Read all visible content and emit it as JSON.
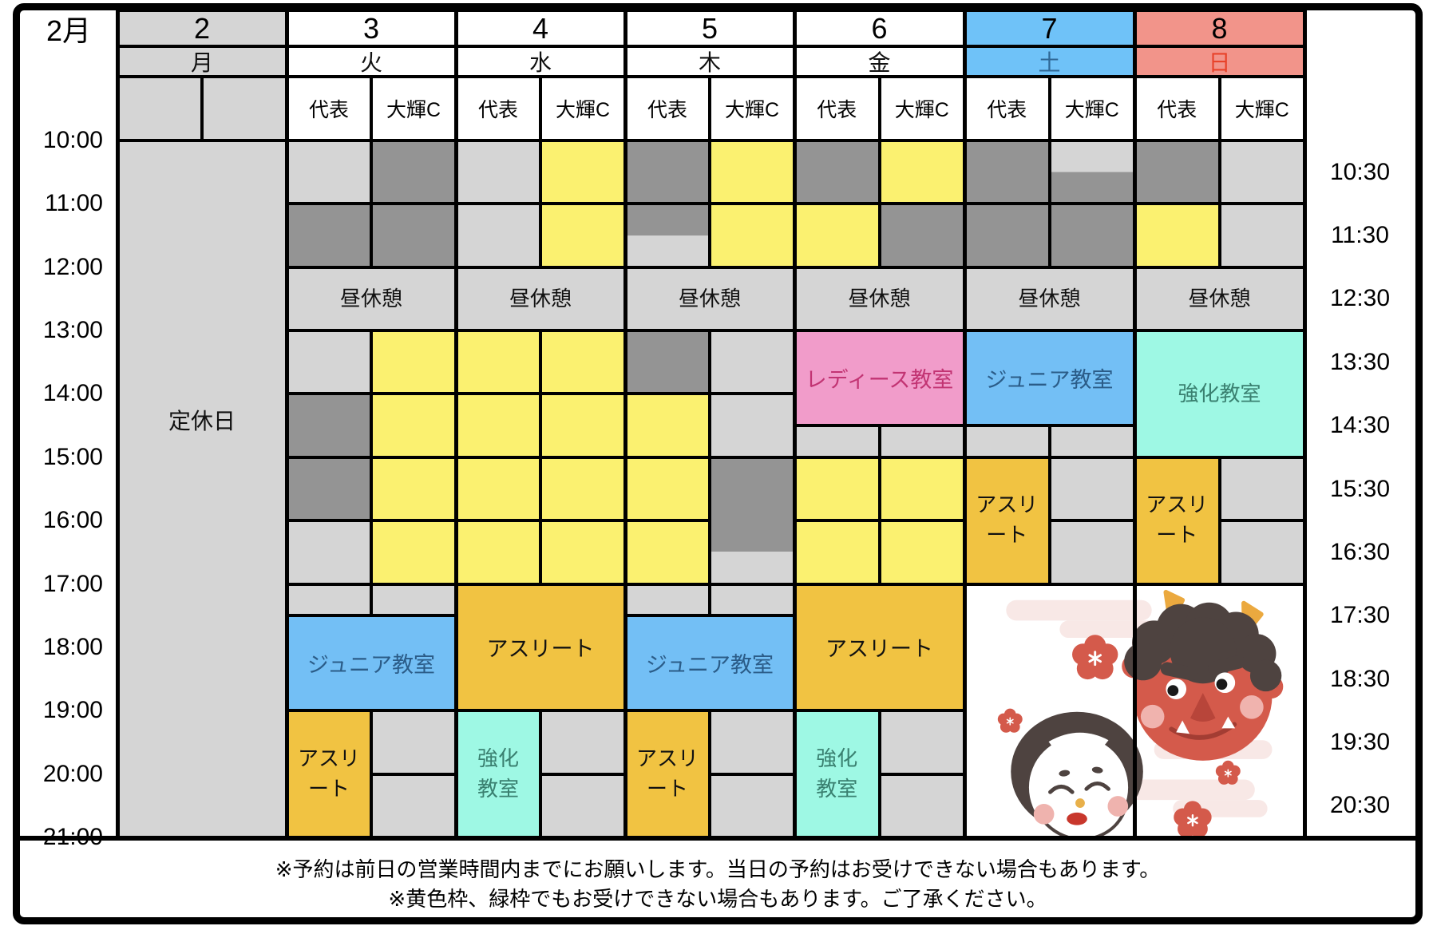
{
  "title": "2月",
  "colors": {
    "gray": "#d5d5d5",
    "dark": "#949494",
    "yellow": "#fbf170",
    "orange": "#f1c342",
    "blue": "#73bff5",
    "cyan": "#9ef8e4",
    "pink": "#f19cca",
    "white": "#ffffff",
    "blue_head": "#6fc2f8",
    "red_head": "#f2948a",
    "ink": "#111111",
    "satText": "#2f6795",
    "sunText": "#e8432a",
    "blueText": "#2b5c88",
    "cyanText": "#3a8070",
    "pinkText": "#c23473"
  },
  "staff_columns": [
    "代表",
    "大輝C"
  ],
  "days": [
    {
      "date": "2",
      "weekday": "月",
      "head_bg": "gray",
      "weekday_color": "ink",
      "staff": false
    },
    {
      "date": "3",
      "weekday": "火",
      "head_bg": "white",
      "weekday_color": "ink",
      "staff": true
    },
    {
      "date": "4",
      "weekday": "水",
      "head_bg": "white",
      "weekday_color": "ink",
      "staff": true
    },
    {
      "date": "5",
      "weekday": "木",
      "head_bg": "white",
      "weekday_color": "ink",
      "staff": true
    },
    {
      "date": "6",
      "weekday": "金",
      "head_bg": "white",
      "weekday_color": "ink",
      "staff": true
    },
    {
      "date": "7",
      "weekday": "土",
      "head_bg": "blue_head",
      "weekday_color": "satText",
      "staff": true
    },
    {
      "date": "8",
      "weekday": "日",
      "head_bg": "red_head",
      "weekday_color": "sunText",
      "staff": true
    }
  ],
  "left_times": [
    "10:00",
    "11:00",
    "12:00",
    "13:00",
    "14:00",
    "15:00",
    "16:00",
    "17:00",
    "18:00",
    "19:00",
    "20:00",
    "21:00"
  ],
  "right_times": [
    "10:30",
    "11:30",
    "12:30",
    "13:30",
    "14:30",
    "15:30",
    "16:30",
    "17:30",
    "18:30",
    "19:30",
    "20:30"
  ],
  "labels": {
    "closed": "定休日",
    "lunch": "昼休憩",
    "junior": "ジュニア教室",
    "athlete": "アスリート",
    "kyoka": "強化教室",
    "ladies": "レディース教室"
  },
  "illustration_alt": "節分の鬼とお多福のイラスト",
  "blocks": [
    {
      "date": 2,
      "col": "B",
      "from": "10:00",
      "to": "21:00",
      "color": "gray",
      "label": [
        "定休日"
      ],
      "vAlign": "upper",
      "name": "closed-day-cell"
    },
    {
      "date": 3,
      "col": "L",
      "from": "10:00",
      "to": "11:00",
      "color": "gray"
    },
    {
      "date": 3,
      "col": "L",
      "from": "11:00",
      "to": "12:00",
      "color": "dark"
    },
    {
      "date": 3,
      "col": "R",
      "from": "10:00",
      "to": "11:00",
      "color": "dark"
    },
    {
      "date": 3,
      "col": "R",
      "from": "11:00",
      "to": "12:00",
      "color": "dark"
    },
    {
      "date": 3,
      "col": "B",
      "from": "12:00",
      "to": "13:00",
      "color": "gray",
      "label": [
        "昼休憩"
      ],
      "name": "lunch-break-cell"
    },
    {
      "date": 3,
      "col": "L",
      "from": "13:00",
      "to": "14:00",
      "color": "gray"
    },
    {
      "date": 3,
      "col": "L",
      "from": "14:00",
      "to": "15:00",
      "color": "dark"
    },
    {
      "date": 3,
      "col": "L",
      "from": "15:00",
      "to": "16:00",
      "color": "dark"
    },
    {
      "date": 3,
      "col": "L",
      "from": "16:00",
      "to": "17:00",
      "color": "gray"
    },
    {
      "date": 3,
      "col": "R",
      "from": "13:00",
      "to": "14:00",
      "color": "yellow"
    },
    {
      "date": 3,
      "col": "R",
      "from": "14:00",
      "to": "15:00",
      "color": "yellow"
    },
    {
      "date": 3,
      "col": "R",
      "from": "15:00",
      "to": "16:00",
      "color": "yellow"
    },
    {
      "date": 3,
      "col": "R",
      "from": "16:00",
      "to": "17:00",
      "color": "yellow"
    },
    {
      "date": 3,
      "col": "L",
      "from": "17:00",
      "to": "17:30",
      "color": "gray"
    },
    {
      "date": 3,
      "col": "R",
      "from": "17:00",
      "to": "17:30",
      "color": "gray"
    },
    {
      "date": 3,
      "col": "B",
      "from": "17:30",
      "to": "19:00",
      "color": "blue",
      "label": [
        "ジュニア教室"
      ],
      "text_color": "blueText",
      "name": "junior-class-block"
    },
    {
      "date": 3,
      "col": "L",
      "from": "19:00",
      "to": "21:00",
      "color": "orange",
      "label": [
        "アスリ",
        "ート"
      ],
      "name": "athlete-block"
    },
    {
      "date": 3,
      "col": "R",
      "from": "19:00",
      "to": "20:00",
      "color": "gray"
    },
    {
      "date": 3,
      "col": "R",
      "from": "20:00",
      "to": "21:00",
      "color": "gray"
    },
    {
      "date": 4,
      "col": "L",
      "from": "10:00",
      "to": "11:00",
      "color": "gray"
    },
    {
      "date": 4,
      "col": "L",
      "from": "11:00",
      "to": "12:00",
      "color": "gray"
    },
    {
      "date": 4,
      "col": "R",
      "from": "10:00",
      "to": "11:00",
      "color": "yellow"
    },
    {
      "date": 4,
      "col": "R",
      "from": "11:00",
      "to": "12:00",
      "color": "yellow"
    },
    {
      "date": 4,
      "col": "B",
      "from": "12:00",
      "to": "13:00",
      "color": "gray",
      "label": [
        "昼休憩"
      ],
      "name": "lunch-break-cell"
    },
    {
      "date": 4,
      "col": "L",
      "from": "13:00",
      "to": "14:00",
      "color": "yellow"
    },
    {
      "date": 4,
      "col": "L",
      "from": "14:00",
      "to": "15:00",
      "color": "yellow"
    },
    {
      "date": 4,
      "col": "L",
      "from": "15:00",
      "to": "16:00",
      "color": "yellow"
    },
    {
      "date": 4,
      "col": "L",
      "from": "16:00",
      "to": "17:00",
      "color": "yellow"
    },
    {
      "date": 4,
      "col": "R",
      "from": "13:00",
      "to": "14:00",
      "color": "yellow"
    },
    {
      "date": 4,
      "col": "R",
      "from": "14:00",
      "to": "15:00",
      "color": "yellow"
    },
    {
      "date": 4,
      "col": "R",
      "from": "15:00",
      "to": "16:00",
      "color": "yellow"
    },
    {
      "date": 4,
      "col": "R",
      "from": "16:00",
      "to": "17:00",
      "color": "yellow"
    },
    {
      "date": 4,
      "col": "B",
      "from": "17:00",
      "to": "19:00",
      "color": "orange",
      "label": [
        "アスリート"
      ],
      "name": "athlete-block"
    },
    {
      "date": 4,
      "col": "L",
      "from": "19:00",
      "to": "21:00",
      "color": "cyan",
      "label": [
        "強化",
        "教室"
      ],
      "text_color": "cyanText",
      "name": "kyoka-class-block"
    },
    {
      "date": 4,
      "col": "R",
      "from": "19:00",
      "to": "20:00",
      "color": "gray"
    },
    {
      "date": 4,
      "col": "R",
      "from": "20:00",
      "to": "21:00",
      "color": "gray"
    },
    {
      "date": 5,
      "col": "L",
      "from": "10:00",
      "to": "11:00",
      "color": "dark"
    },
    {
      "date": 5,
      "col": "L",
      "from": "11:00",
      "to": "12:00",
      "color": "dark",
      "color2": "gray",
      "split": 50
    },
    {
      "date": 5,
      "col": "R",
      "from": "10:00",
      "to": "11:00",
      "color": "yellow"
    },
    {
      "date": 5,
      "col": "R",
      "from": "11:00",
      "to": "12:00",
      "color": "yellow"
    },
    {
      "date": 5,
      "col": "B",
      "from": "12:00",
      "to": "13:00",
      "color": "gray",
      "label": [
        "昼休憩"
      ],
      "name": "lunch-break-cell"
    },
    {
      "date": 5,
      "col": "L",
      "from": "13:00",
      "to": "14:00",
      "color": "dark"
    },
    {
      "date": 5,
      "col": "L",
      "from": "14:00",
      "to": "15:00",
      "color": "yellow"
    },
    {
      "date": 5,
      "col": "L",
      "from": "15:00",
      "to": "16:00",
      "color": "yellow"
    },
    {
      "date": 5,
      "col": "L",
      "from": "16:00",
      "to": "17:00",
      "color": "yellow"
    },
    {
      "date": 5,
      "col": "R",
      "from": "13:00",
      "to": "14:00",
      "color": "gray"
    },
    {
      "date": 5,
      "col": "R",
      "from": "14:00",
      "to": "15:00",
      "color": "gray"
    },
    {
      "date": 5,
      "col": "R",
      "from": "15:00",
      "to": "17:00",
      "color": "dark",
      "color2": "gray",
      "split": 75
    },
    {
      "date": 5,
      "col": "L",
      "from": "17:00",
      "to": "17:30",
      "color": "gray"
    },
    {
      "date": 5,
      "col": "R",
      "from": "17:00",
      "to": "17:30",
      "color": "gray"
    },
    {
      "date": 5,
      "col": "B",
      "from": "17:30",
      "to": "19:00",
      "color": "blue",
      "label": [
        "ジュニア教室"
      ],
      "text_color": "blueText",
      "name": "junior-class-block"
    },
    {
      "date": 5,
      "col": "L",
      "from": "19:00",
      "to": "21:00",
      "color": "orange",
      "label": [
        "アスリ",
        "ート"
      ],
      "name": "athlete-block"
    },
    {
      "date": 5,
      "col": "R",
      "from": "19:00",
      "to": "20:00",
      "color": "gray"
    },
    {
      "date": 5,
      "col": "R",
      "from": "20:00",
      "to": "21:00",
      "color": "gray"
    },
    {
      "date": 6,
      "col": "L",
      "from": "10:00",
      "to": "11:00",
      "color": "dark"
    },
    {
      "date": 6,
      "col": "L",
      "from": "11:00",
      "to": "12:00",
      "color": "yellow"
    },
    {
      "date": 6,
      "col": "R",
      "from": "10:00",
      "to": "11:00",
      "color": "yellow"
    },
    {
      "date": 6,
      "col": "R",
      "from": "11:00",
      "to": "12:00",
      "color": "dark"
    },
    {
      "date": 6,
      "col": "B",
      "from": "12:00",
      "to": "13:00",
      "color": "gray",
      "label": [
        "昼休憩"
      ],
      "name": "lunch-break-cell"
    },
    {
      "date": 6,
      "col": "B",
      "from": "13:00",
      "to": "14:30",
      "color": "pink",
      "label": [
        "レディース教室"
      ],
      "text_color": "pinkText",
      "name": "ladies-class-block"
    },
    {
      "date": 6,
      "col": "L",
      "from": "14:30",
      "to": "15:00",
      "color": "gray"
    },
    {
      "date": 6,
      "col": "R",
      "from": "14:30",
      "to": "15:00",
      "color": "gray"
    },
    {
      "date": 6,
      "col": "L",
      "from": "15:00",
      "to": "16:00",
      "color": "yellow"
    },
    {
      "date": 6,
      "col": "L",
      "from": "16:00",
      "to": "17:00",
      "color": "yellow"
    },
    {
      "date": 6,
      "col": "R",
      "from": "15:00",
      "to": "16:00",
      "color": "yellow"
    },
    {
      "date": 6,
      "col": "R",
      "from": "16:00",
      "to": "17:00",
      "color": "yellow"
    },
    {
      "date": 6,
      "col": "B",
      "from": "17:00",
      "to": "19:00",
      "color": "orange",
      "label": [
        "アスリート"
      ],
      "name": "athlete-block"
    },
    {
      "date": 6,
      "col": "L",
      "from": "19:00",
      "to": "21:00",
      "color": "cyan",
      "label": [
        "強化",
        "教室"
      ],
      "text_color": "cyanText",
      "name": "kyoka-class-block"
    },
    {
      "date": 6,
      "col": "R",
      "from": "19:00",
      "to": "20:00",
      "color": "gray"
    },
    {
      "date": 6,
      "col": "R",
      "from": "20:00",
      "to": "21:00",
      "color": "gray"
    },
    {
      "date": 7,
      "col": "L",
      "from": "10:00",
      "to": "11:00",
      "color": "dark"
    },
    {
      "date": 7,
      "col": "L",
      "from": "11:00",
      "to": "12:00",
      "color": "dark"
    },
    {
      "date": 7,
      "col": "R",
      "from": "10:00",
      "to": "11:00",
      "color": "gray",
      "color2": "dark",
      "split": 50
    },
    {
      "date": 7,
      "col": "R",
      "from": "11:00",
      "to": "12:00",
      "color": "dark"
    },
    {
      "date": 7,
      "col": "B",
      "from": "12:00",
      "to": "13:00",
      "color": "gray",
      "label": [
        "昼休憩"
      ],
      "name": "lunch-break-cell"
    },
    {
      "date": 7,
      "col": "B",
      "from": "13:00",
      "to": "14:30",
      "color": "blue",
      "label": [
        "ジュニア教室"
      ],
      "text_color": "blueText",
      "name": "junior-class-block"
    },
    {
      "date": 7,
      "col": "L",
      "from": "14:30",
      "to": "15:00",
      "color": "gray"
    },
    {
      "date": 7,
      "col": "R",
      "from": "14:30",
      "to": "15:00",
      "color": "gray"
    },
    {
      "date": 7,
      "col": "L",
      "from": "15:00",
      "to": "17:00",
      "color": "orange",
      "label": [
        "アスリ",
        "ート"
      ],
      "name": "athlete-block"
    },
    {
      "date": 7,
      "col": "R",
      "from": "15:00",
      "to": "16:00",
      "color": "gray"
    },
    {
      "date": 7,
      "col": "R",
      "from": "16:00",
      "to": "17:00",
      "color": "gray"
    },
    {
      "date": 7,
      "col": "W",
      "from": "17:00",
      "to": "21:00",
      "type": "art",
      "name": "setsubun-illustration-cell"
    },
    {
      "date": 8,
      "col": "L",
      "from": "10:00",
      "to": "11:00",
      "color": "dark"
    },
    {
      "date": 8,
      "col": "L",
      "from": "11:00",
      "to": "12:00",
      "color": "yellow"
    },
    {
      "date": 8,
      "col": "R",
      "from": "10:00",
      "to": "11:00",
      "color": "gray"
    },
    {
      "date": 8,
      "col": "R",
      "from": "11:00",
      "to": "12:00",
      "color": "gray"
    },
    {
      "date": 8,
      "col": "B",
      "from": "12:00",
      "to": "13:00",
      "color": "gray",
      "label": [
        "昼休憩"
      ],
      "name": "lunch-break-cell"
    },
    {
      "date": 8,
      "col": "B",
      "from": "13:00",
      "to": "15:00",
      "color": "cyan",
      "label": [
        "強化教室"
      ],
      "text_color": "cyanText",
      "name": "kyoka-class-block"
    },
    {
      "date": 8,
      "col": "L",
      "from": "15:00",
      "to": "17:00",
      "color": "orange",
      "label": [
        "アスリ",
        "ート"
      ],
      "name": "athlete-block"
    },
    {
      "date": 8,
      "col": "R",
      "from": "15:00",
      "to": "16:00",
      "color": "gray"
    },
    {
      "date": 8,
      "col": "R",
      "from": "16:00",
      "to": "17:00",
      "color": "gray"
    }
  ],
  "notes": [
    "※予約は前日の営業時間内までにお願いします。当日の予約はお受けできない場合もあります。",
    "※黄色枠、緑枠でもお受けできない場合もあります。ご了承ください。"
  ]
}
